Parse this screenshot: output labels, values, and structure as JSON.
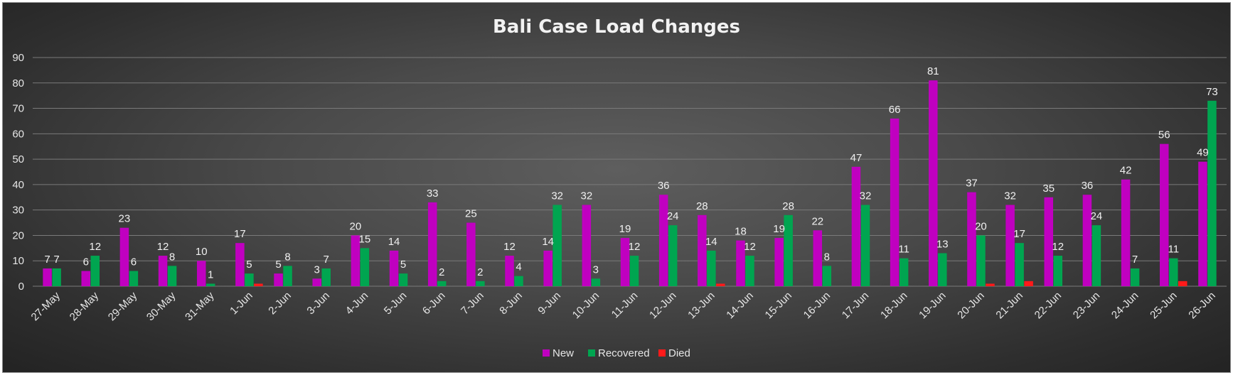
{
  "chart_data": {
    "type": "bar",
    "title": "Bali Case Load Changes",
    "xlabel": "",
    "ylabel": "",
    "ylim": [
      0,
      90
    ],
    "yticks": [
      0,
      10,
      20,
      30,
      40,
      50,
      60,
      70,
      80,
      90
    ],
    "grid": true,
    "legend_position": "bottom",
    "categories": [
      "27-May",
      "28-May",
      "29-May",
      "30-May",
      "31-May",
      "1-Jun",
      "2-Jun",
      "3-Jun",
      "4-Jun",
      "5-Jun",
      "6-Jun",
      "7-Jun",
      "8-Jun",
      "9-Jun",
      "10-Jun",
      "11-Jun",
      "12-Jun",
      "13-Jun",
      "14-Jun",
      "15-Jun",
      "16-Jun",
      "17-Jun",
      "18-Jun",
      "19-Jun",
      "20-Jun",
      "21-Jun",
      "22-Jun",
      "23-Jun",
      "24-Jun",
      "25-Jun",
      "26-Jun"
    ],
    "series": [
      {
        "name": "New",
        "color": "#c000c0",
        "values": [
          7,
          6,
          23,
          12,
          10,
          17,
          5,
          3,
          20,
          14,
          33,
          25,
          12,
          14,
          32,
          19,
          36,
          28,
          18,
          19,
          22,
          47,
          66,
          81,
          37,
          32,
          35,
          36,
          42,
          56,
          49
        ],
        "labels": [
          "7",
          "6",
          "23",
          "12",
          "10",
          "17",
          "5",
          "3",
          "20",
          "14",
          "33",
          "25",
          "12",
          "14",
          "32",
          "19",
          "36",
          "28",
          "18",
          "19",
          "22",
          "47",
          "66",
          "81",
          "37",
          "32",
          "35",
          "36",
          "42",
          "56",
          "49"
        ]
      },
      {
        "name": "Recovered",
        "color": "#00a550",
        "values": [
          7,
          12,
          6,
          8,
          1,
          5,
          8,
          7,
          15,
          5,
          2,
          2,
          4,
          32,
          3,
          12,
          24,
          14,
          12,
          28,
          8,
          32,
          11,
          13,
          20,
          17,
          12,
          24,
          7,
          11,
          73
        ],
        "labels": [
          "7",
          "12",
          "6",
          "8",
          "1",
          "5",
          "8",
          "7",
          "15",
          "5",
          "2",
          "2",
          "4",
          "32",
          "3",
          "12",
          "24",
          "14",
          "12",
          "28",
          "8",
          "32",
          "11",
          "13",
          "20",
          "17",
          "12",
          "24",
          "7",
          "11",
          "73"
        ]
      },
      {
        "name": "Died",
        "color": "#ff1a1a",
        "values": [
          0,
          0,
          0,
          0,
          0,
          1,
          0,
          0,
          0,
          0,
          0,
          0,
          0,
          0,
          0,
          0,
          0,
          1,
          0,
          0,
          0,
          0,
          0,
          0,
          1,
          2,
          0,
          0,
          0,
          2,
          0
        ],
        "labels": []
      }
    ]
  }
}
